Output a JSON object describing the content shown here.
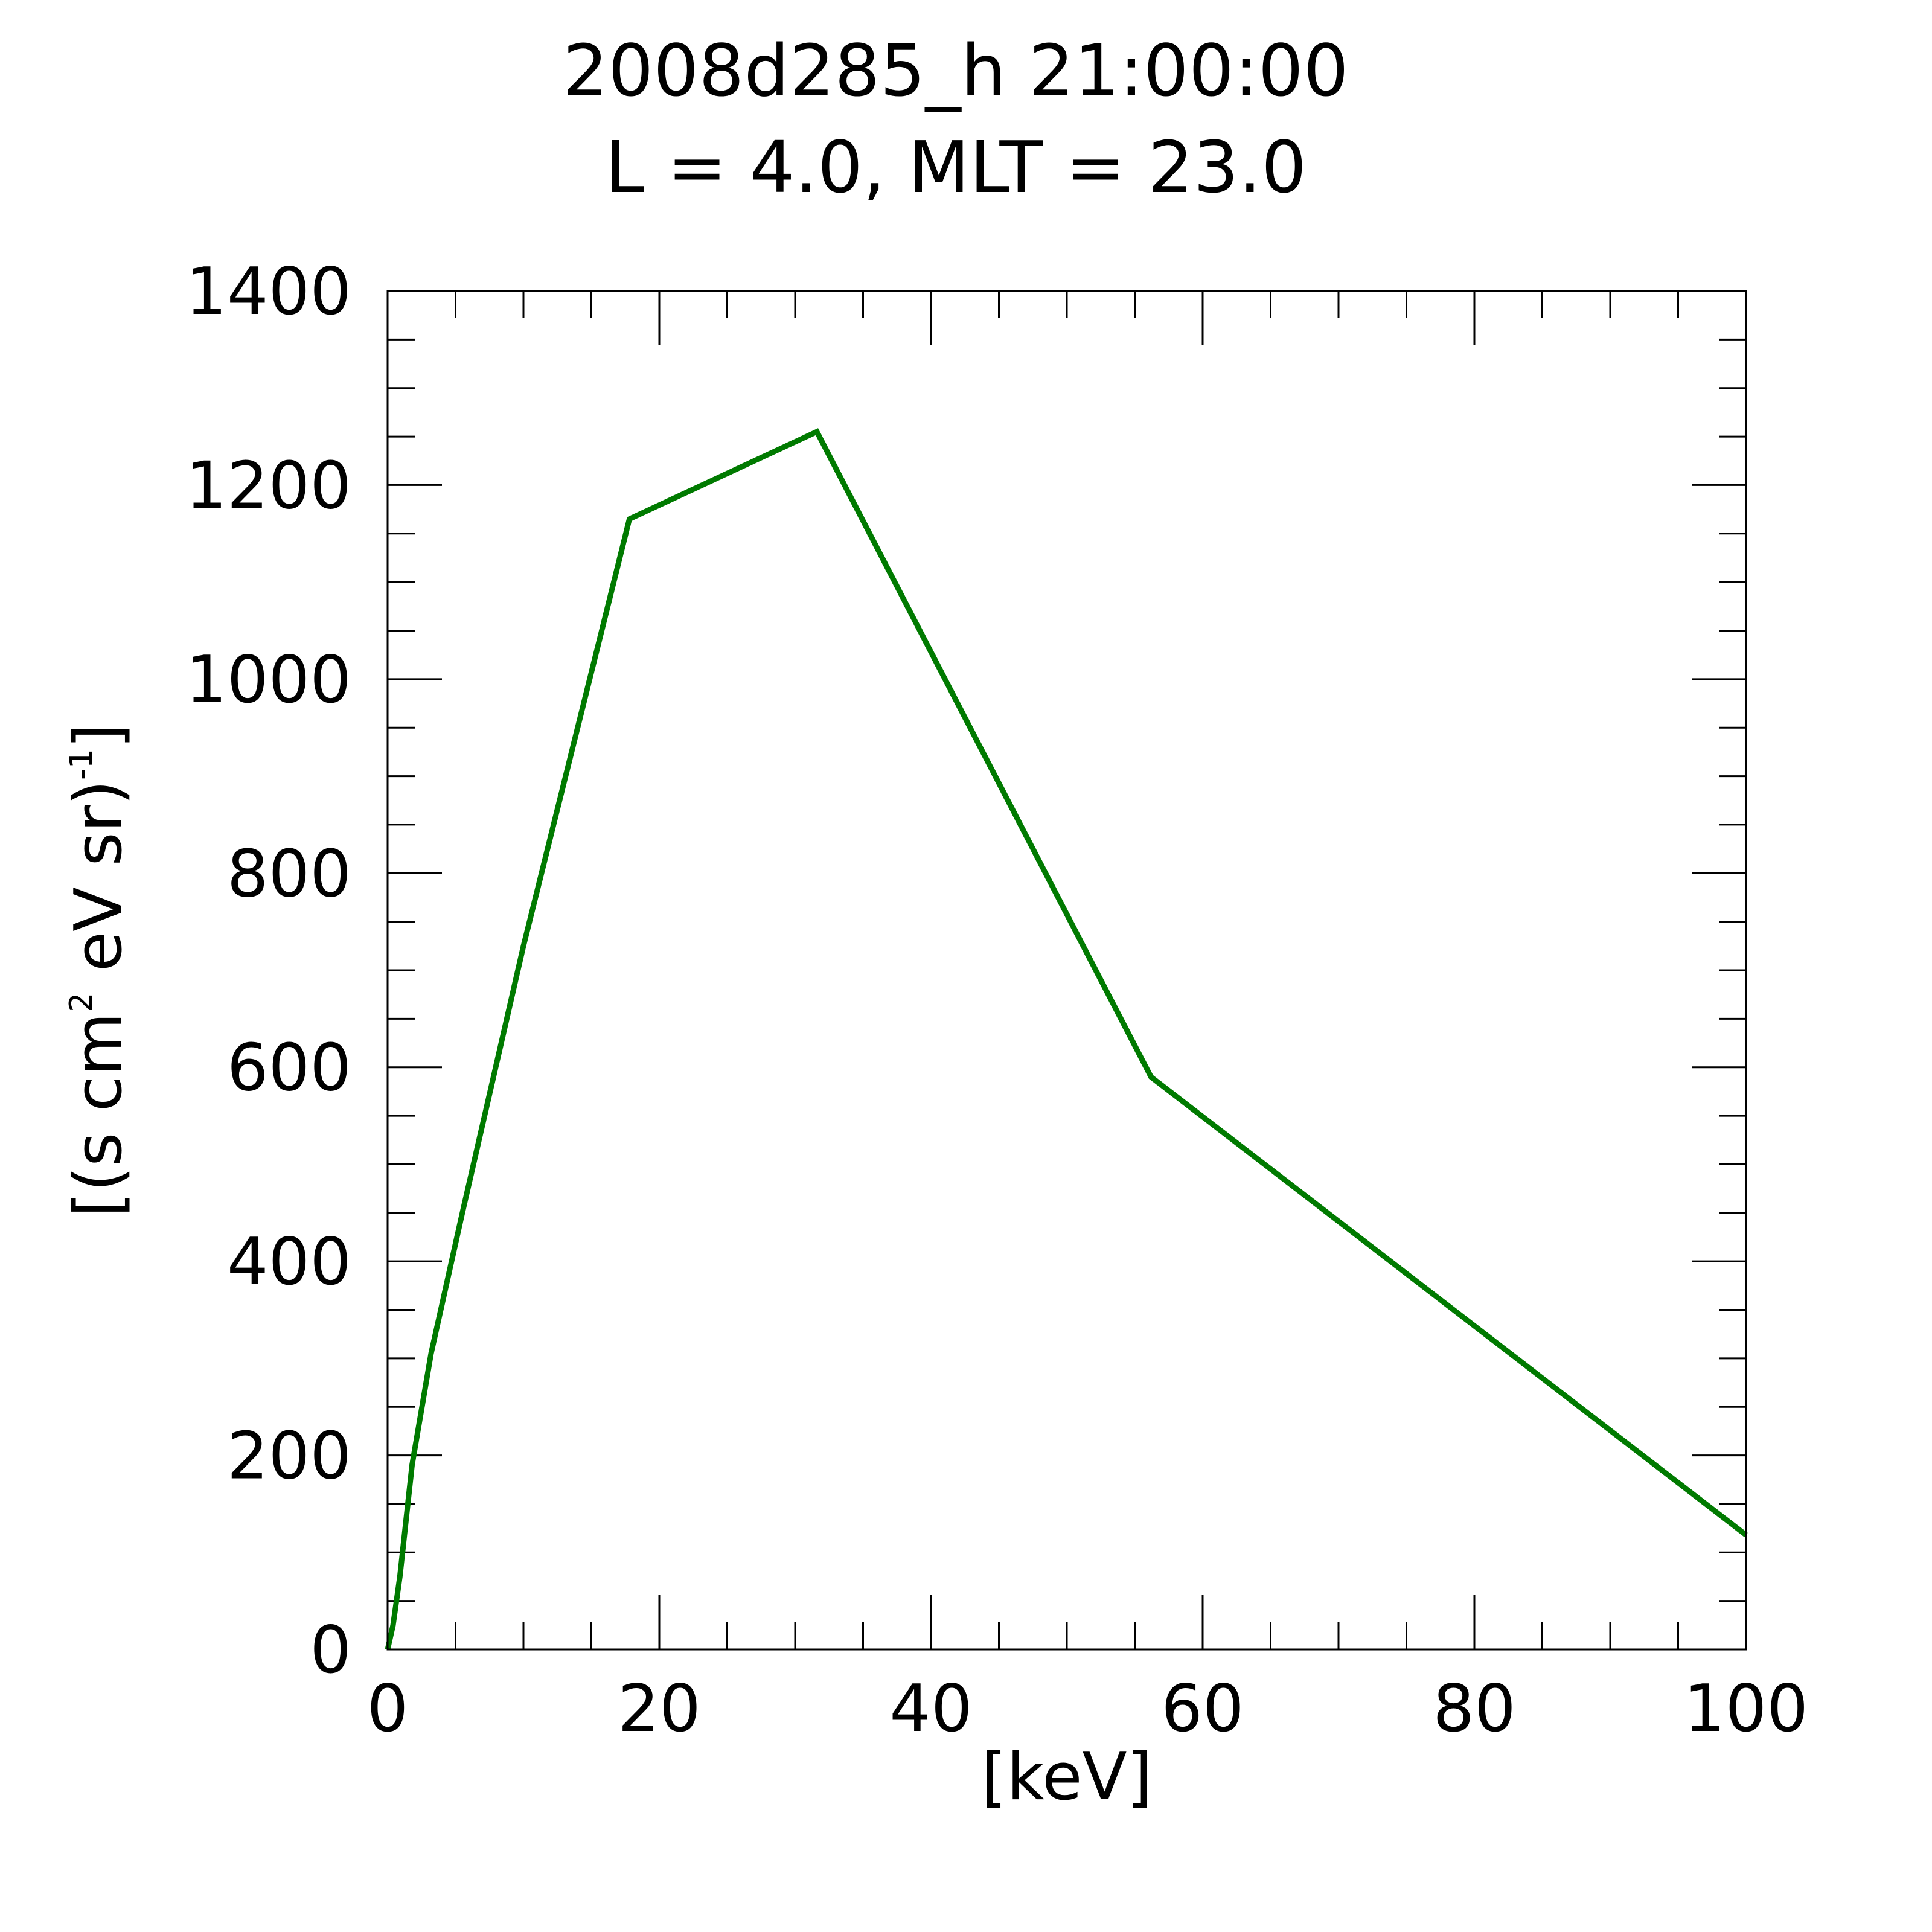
{
  "chart_data": {
    "type": "line",
    "title": "2008d285_h  21:00:00",
    "subtitle": "L = 4.0, MLT = 23.0",
    "xlabel": "[keV]",
    "ylabel": {
      "open": "[(s cm",
      "sup1": "2",
      "mid": " eV sr)",
      "sup2": "-1",
      "close": "]"
    },
    "xlim": [
      0,
      100
    ],
    "ylim": [
      0,
      1400
    ],
    "x_ticks": [
      0,
      20,
      40,
      60,
      80,
      100
    ],
    "x_tick_labels": [
      "0",
      "20",
      "40",
      "60",
      "80",
      "100"
    ],
    "y_ticks": [
      0,
      200,
      400,
      600,
      800,
      1000,
      1200,
      1400
    ],
    "y_tick_labels": [
      "0",
      "200",
      "400",
      "600",
      "800",
      "1000",
      "1200",
      "1400"
    ],
    "x_minor_step": 5,
    "y_minor_step": 50,
    "grid": false,
    "legend": "none",
    "series": [
      {
        "color": "#007a00",
        "x": [
          0,
          0.4,
          0.9,
          1.8,
          3.2,
          5.5,
          10,
          17.8,
          31.6,
          56.2,
          100
        ],
        "y": [
          0,
          25,
          75,
          190,
          305,
          450,
          725,
          1165,
          1255,
          590,
          118
        ]
      }
    ]
  }
}
